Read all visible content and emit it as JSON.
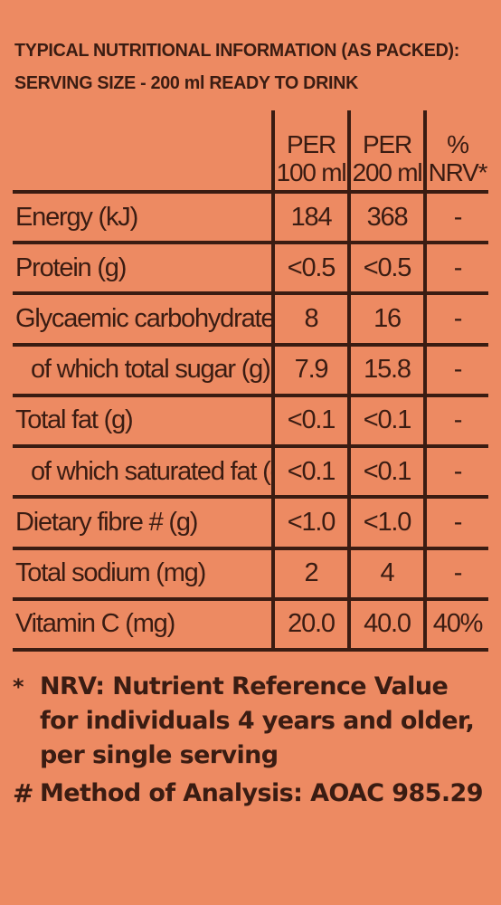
{
  "header": {
    "line1": "TYPICAL NUTRITIONAL INFORMATION (AS PACKED):",
    "line2": "SERVING SIZE - 200 ml READY TO DRINK"
  },
  "table": {
    "columns": [
      {
        "line1": "PER",
        "line2": "100 ml"
      },
      {
        "line1": "PER",
        "line2": "200 ml"
      },
      {
        "line1": "%",
        "line2": "NRV*"
      }
    ],
    "rows": [
      {
        "label": "Energy (kJ)",
        "indent": false,
        "per100": "184",
        "per200": "368",
        "nrv": "-"
      },
      {
        "label": "Protein (g)",
        "indent": false,
        "per100": "<0.5",
        "per200": "<0.5",
        "nrv": "-"
      },
      {
        "label": "Glycaemic carbohydrate (g)",
        "indent": false,
        "per100": "8",
        "per200": "16",
        "nrv": "-"
      },
      {
        "label": "of which total sugar (g)",
        "indent": true,
        "per100": "7.9",
        "per200": "15.8",
        "nrv": "-"
      },
      {
        "label": "Total fat (g)",
        "indent": false,
        "per100": "<0.1",
        "per200": "<0.1",
        "nrv": "-"
      },
      {
        "label": "of which saturated fat (g)",
        "indent": true,
        "per100": "<0.1",
        "per200": "<0.1",
        "nrv": "-"
      },
      {
        "label": "Dietary fibre # (g)",
        "indent": false,
        "per100": "<1.0",
        "per200": "<1.0",
        "nrv": "-"
      },
      {
        "label": "Total sodium (mg)",
        "indent": false,
        "per100": "2",
        "per200": "4",
        "nrv": "-"
      },
      {
        "label": "Vitamin C (mg)",
        "indent": false,
        "per100": "20.0",
        "per200": "40.0",
        "nrv": "40%"
      }
    ]
  },
  "footnotes": [
    {
      "mark": "*",
      "text": "NRV: Nutrient Reference Value for individuals 4 years and older, per single serving"
    },
    {
      "mark": "#",
      "text": "Method of Analysis: AOAC 985.29"
    }
  ],
  "colors": {
    "background": "#ed8a62",
    "ink": "#3a1c12"
  }
}
